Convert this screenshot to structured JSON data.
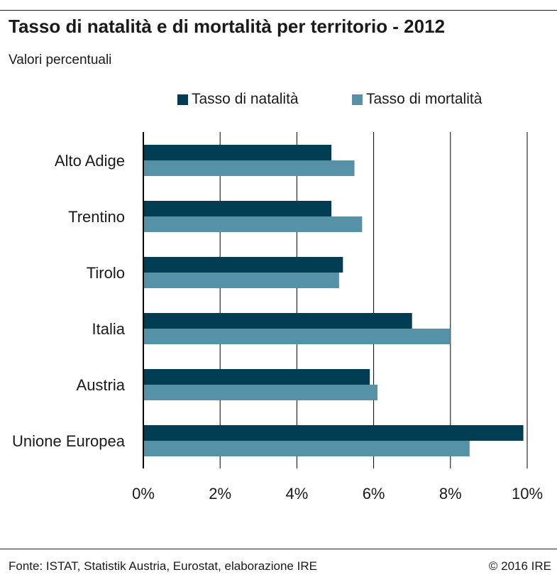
{
  "colors": {
    "natalita": "#003d52",
    "mortalita": "#5592a8",
    "grid": "#000000",
    "text": "#1a1a1a"
  },
  "header": {
    "title": "Tasso di natalità e di mortalità per territorio - 2012",
    "subtitle": "Valori percentuali"
  },
  "footer": {
    "source": "Fonte:  ISTAT, Statistik Austria, Eurostat, elaborazione IRE",
    "copyright": "© 2016 IRE"
  },
  "chart_data": {
    "type": "bar",
    "orientation": "horizontal",
    "title": "Tasso di natalità e di mortalità per territorio - 2012",
    "subtitle": "Valori percentuali",
    "categories": [
      "Alto Adige",
      "Trentino",
      "Tirolo",
      "Italia",
      "Austria",
      "Unione Europea"
    ],
    "series": [
      {
        "name": "Tasso di natalità",
        "color": "#003d52",
        "values": [
          4.9,
          4.9,
          5.2,
          7.0,
          5.9,
          9.9
        ]
      },
      {
        "name": "Tasso di mortalità",
        "color": "#5592a8",
        "values": [
          5.5,
          5.7,
          5.1,
          8.0,
          6.1,
          8.5
        ]
      }
    ],
    "xlim": [
      0,
      10
    ],
    "xticks": [
      0,
      2,
      4,
      6,
      8,
      10
    ],
    "tick_labels": [
      "0%",
      "2%",
      "4%",
      "6%",
      "8%",
      "10%"
    ],
    "unit": "%",
    "grid": "vertical",
    "legend_position": "top"
  }
}
